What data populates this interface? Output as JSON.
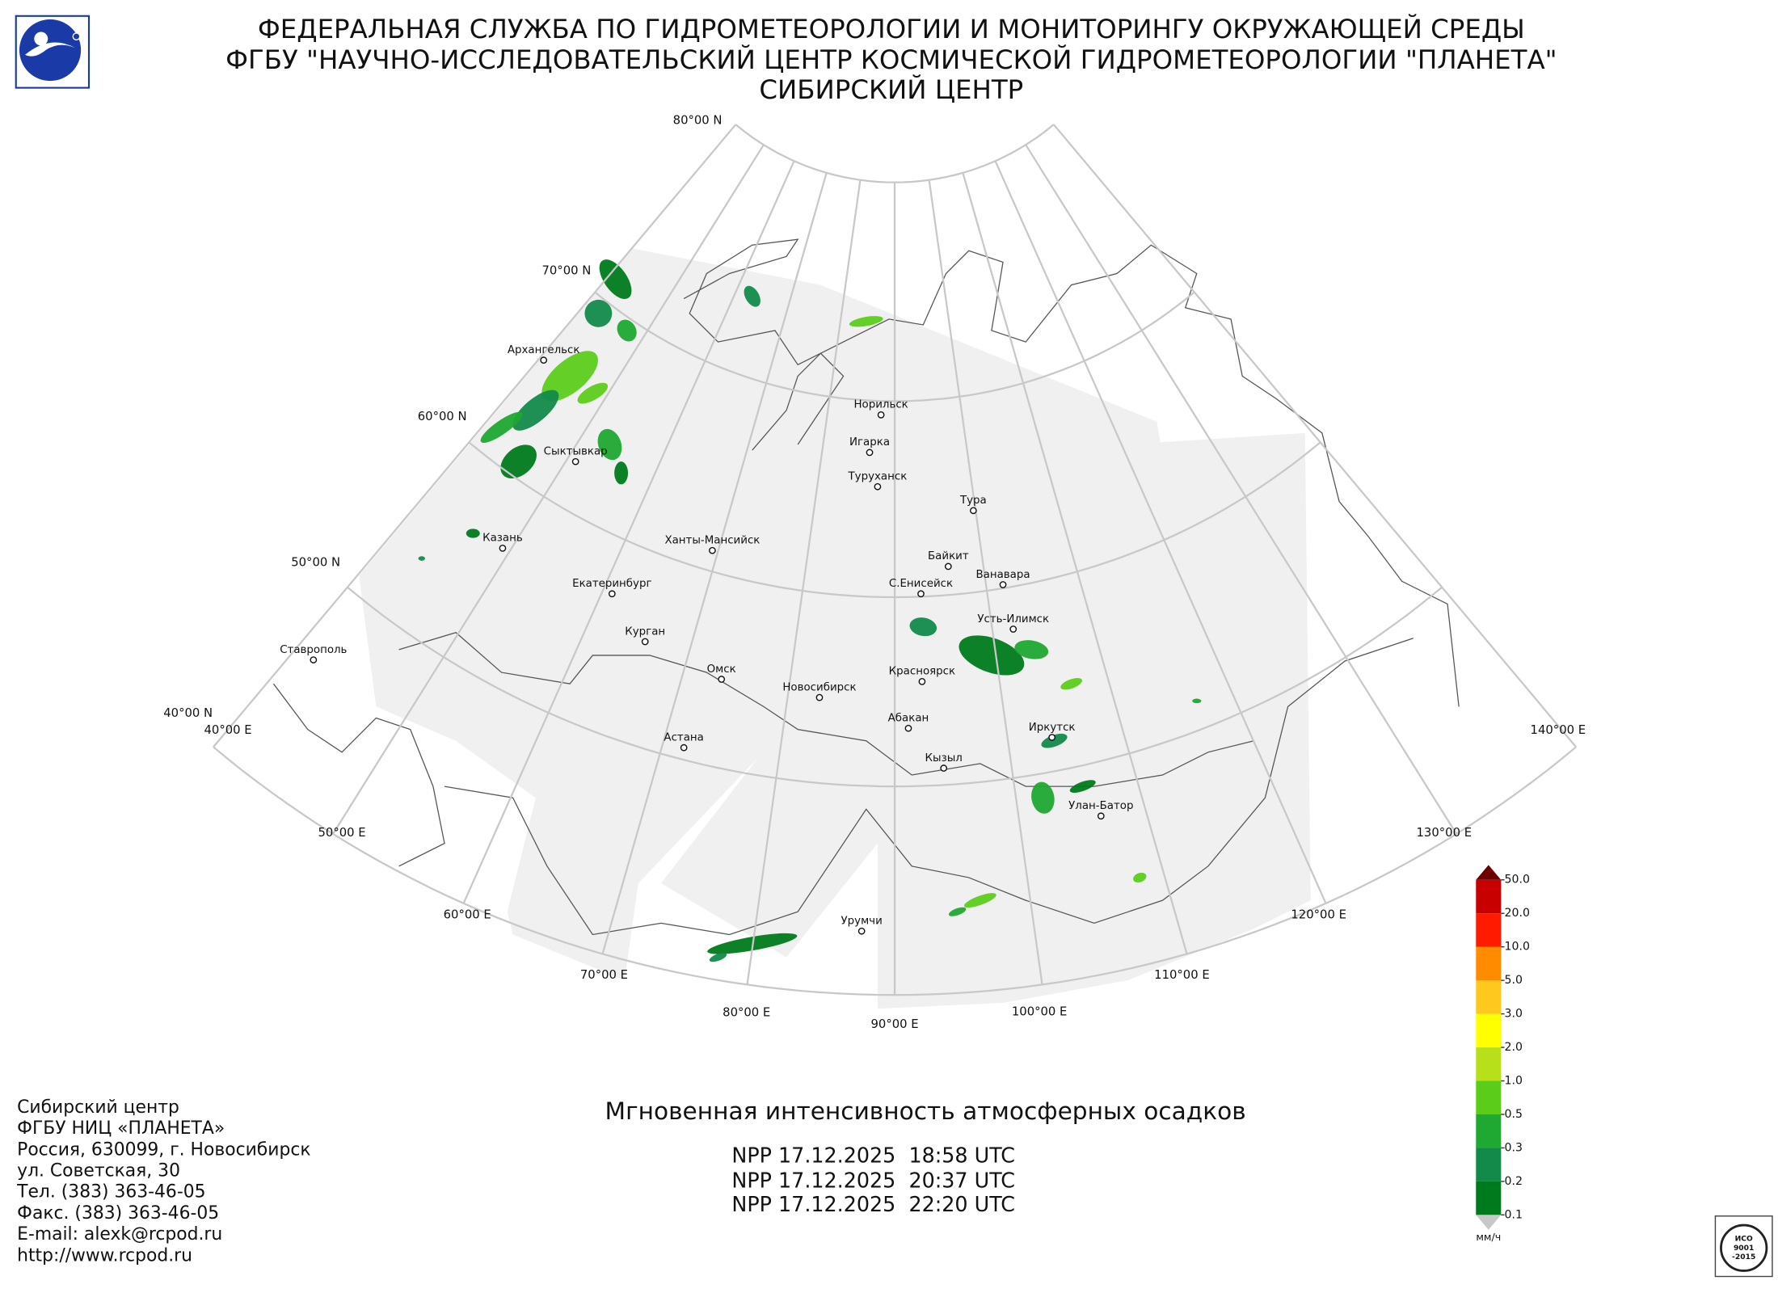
{
  "header": {
    "lines": [
      "ФЕДЕРАЛЬНАЯ СЛУЖБА ПО ГИДРОМЕТЕОРОЛОГИИ И МОНИТОРИНГУ ОКРУЖАЮЩЕЙ СРЕДЫ",
      "ФГБУ \"НАУЧНО-ИССЛЕДОВАТЕЛЬСКИЙ ЦЕНТР КОСМИЧЕСКОЙ ГИДРОМЕТЕОРОЛОГИИ \"ПЛАНЕТА\"",
      "СИБИРСКИЙ ЦЕНТР"
    ]
  },
  "map": {
    "lat_labels": [
      "80°00 N",
      "70°00 N",
      "60°00 N",
      "50°00 N",
      "40°00 N"
    ],
    "lon_labels": [
      "40°00 E",
      "50°00 E",
      "60°00 E",
      "70°00 E",
      "80°00 E",
      "90°00 E",
      "100°00 E",
      "110°00 E",
      "120°00 E",
      "130°00 E",
      "140°00 E"
    ],
    "cities": [
      "Архангельск",
      "Сыктывкар",
      "Казань",
      "Екатеринбург",
      "Ставрополь",
      "Курган",
      "Ханты-Мансийск",
      "Омск",
      "Астана",
      "Новосибирск",
      "Норильск",
      "Игарка",
      "Туруханск",
      "Тура",
      "Байкит",
      "Ванавара",
      "С.Енисейск",
      "Усть-Илимск",
      "Красноярск",
      "Абакан",
      "Иркутск",
      "Кызыл",
      "Улан-Батор",
      "Урумчи"
    ]
  },
  "legend": {
    "levels": [
      {
        "value": 0.1,
        "label": "0.1"
      },
      {
        "value": 0.2,
        "label": "0.2"
      },
      {
        "value": 0.3,
        "label": "0.3"
      },
      {
        "value": 0.5,
        "label": "0.5"
      },
      {
        "value": 1,
        "label": "1.0"
      },
      {
        "value": 2,
        "label": "2.0"
      },
      {
        "value": 3,
        "label": "3.0"
      },
      {
        "value": 5,
        "label": "5.0"
      },
      {
        "value": 10,
        "label": "10.0"
      },
      {
        "value": 20,
        "label": "20.0"
      },
      {
        "value": 50,
        "label": "50.0"
      }
    ],
    "colors": [
      "#007a1c",
      "#138a4a",
      "#1fa832",
      "#5ccc1a",
      "#b8e01a",
      "#ffff00",
      "#ffc81e",
      "#ff8c00",
      "#ff1a00",
      "#c80000"
    ],
    "over_color": "#6e0000",
    "under_color": "#c8c8c8",
    "unit": "мм/ч"
  },
  "product": {
    "title": "Мгновенная интенсивность атмосферных осадков",
    "passes": [
      "NPP 17.12.2025  18:58 UTC",
      "NPP 17.12.2025  20:37 UTC",
      "NPP 17.12.2025  22:20 UTC"
    ]
  },
  "contacts": [
    "Сибирский центр",
    "ФГБУ НИЦ «ПЛАНЕТА»",
    "Россия, 630099, г. Новосибирск",
    "ул. Советская, 30",
    "Тел. (383) 363-46-05",
    "Факс. (383) 363-46-05",
    "E-mail: alexk@rcpod.ru",
    "http://www.rcpod.ru"
  ],
  "iso_logo": [
    "ИСО",
    "9001",
    "-2015"
  ]
}
